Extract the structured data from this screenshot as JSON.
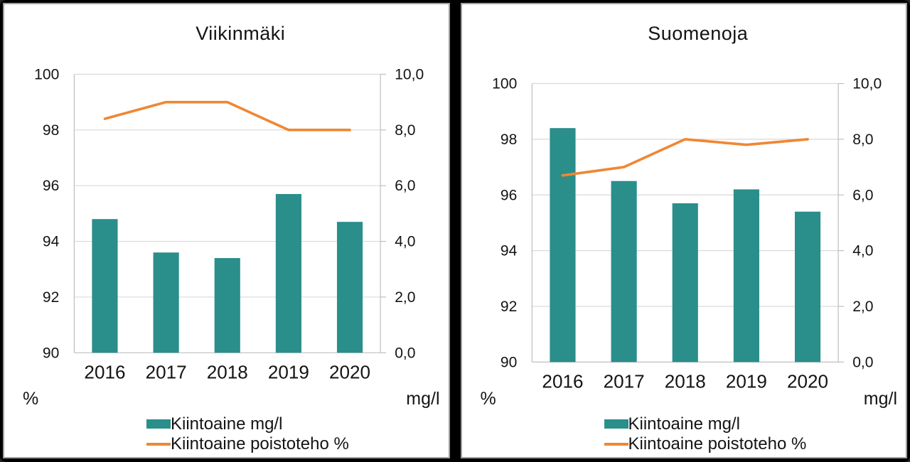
{
  "frame": {
    "background": "#000000",
    "panel_background": "#ffffff",
    "panel_border": "#a0a0a0",
    "gridline_color": "#d9d9d9",
    "axis_line_color": "#bfbfbf",
    "text_color": "#141414"
  },
  "chart_data": [
    {
      "type": "bar+line",
      "title": "Viikinmäki",
      "categories": [
        "2016",
        "2017",
        "2018",
        "2019",
        "2020"
      ],
      "series": [
        {
          "name": "Kiintoaine mg/l",
          "kind": "bar",
          "axis": "right",
          "color": "#2a8e8b",
          "values": [
            4.8,
            3.6,
            3.4,
            5.7,
            4.7
          ]
        },
        {
          "name": "Kiintoaine poistoteho %",
          "kind": "line",
          "axis": "left",
          "color": "#ef8733",
          "values": [
            98.4,
            99.0,
            99.0,
            98.0,
            98.0
          ]
        }
      ],
      "left_axis": {
        "label": "%",
        "min": 90,
        "max": 100,
        "tick_labels": [
          "100",
          "98",
          "96",
          "94",
          "92",
          "90"
        ]
      },
      "right_axis": {
        "label": "mg/l",
        "min": 0,
        "max": 10,
        "tick_labels": [
          "10,0",
          "8,0",
          "6,0",
          "4,0",
          "2,0",
          "0,0"
        ]
      },
      "layout": {
        "plot_offset_y": 0,
        "grid": true,
        "legend_position": "bottom"
      }
    },
    {
      "type": "bar+line",
      "title": "Suomenoja",
      "categories": [
        "2016",
        "2017",
        "2018",
        "2019",
        "2020"
      ],
      "series": [
        {
          "name": "Kiintoaine mg/l",
          "kind": "bar",
          "axis": "right",
          "color": "#2a8e8b",
          "values": [
            8.4,
            6.5,
            5.7,
            6.2,
            5.4
          ]
        },
        {
          "name": "Kiintoaine poistoteho %",
          "kind": "line",
          "axis": "left",
          "color": "#ef8733",
          "values": [
            96.7,
            97.0,
            98.0,
            97.8,
            98.0
          ]
        }
      ],
      "left_axis": {
        "label": "%",
        "min": 90,
        "max": 100,
        "tick_labels": [
          "100",
          "98",
          "96",
          "94",
          "92",
          "90"
        ]
      },
      "right_axis": {
        "label": "mg/l",
        "min": 0,
        "max": 10,
        "tick_labels": [
          "10,0",
          "8,0",
          "6,0",
          "4,0",
          "2,0",
          "0,0"
        ]
      },
      "layout": {
        "plot_offset_y": 13,
        "grid": true,
        "legend_position": "bottom"
      }
    }
  ]
}
